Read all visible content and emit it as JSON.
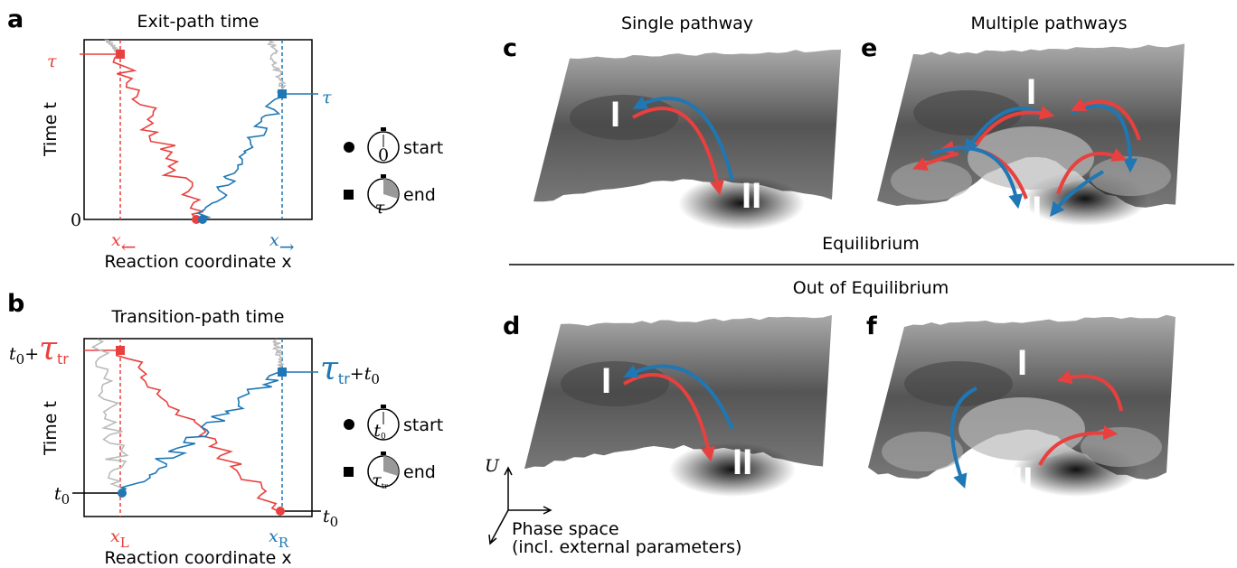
{
  "panel_a": {
    "label": "a",
    "title": "Exit-path time",
    "y_axis": "Time t",
    "x_axis": "Reaction coordinate x",
    "origin": "0",
    "left_marker": [
      "x",
      "←"
    ],
    "right_marker": [
      "x",
      "→"
    ],
    "tau_left": "τ",
    "tau_right": "τ",
    "legend": [
      {
        "clock": "0",
        "text": "start"
      },
      {
        "clock": "τ",
        "text": "end"
      }
    ]
  },
  "panel_b": {
    "label": "b",
    "title": "Transition-path time",
    "y_axis": "Time t",
    "x_axis": "Reaction coordinate x",
    "top_left": [
      "t",
      "0",
      "+",
      "τ",
      "tr"
    ],
    "top_right": [
      "τ",
      "tr",
      "+",
      "t",
      "0"
    ],
    "start_left": [
      "t",
      "0"
    ],
    "start_right": [
      "t",
      "0"
    ],
    "left_marker": [
      "x",
      "L"
    ],
    "right_marker": [
      "x",
      "R"
    ],
    "legend": [
      {
        "clock": [
          "t",
          "0"
        ],
        "text": "start"
      },
      {
        "clock": [
          "τ",
          "tr"
        ],
        "text": "end"
      }
    ]
  },
  "columns": [
    "Single pathway",
    "Multiple pathways"
  ],
  "rows": [
    "Equilibrium",
    "Out of Equilibrium"
  ],
  "panels": {
    "c": {
      "label": "c",
      "states": [
        "I",
        "II"
      ]
    },
    "d": {
      "label": "d",
      "states": [
        "I",
        "II"
      ]
    },
    "e": {
      "label": "e",
      "states": [
        "I",
        "II"
      ]
    },
    "f": {
      "label": "f",
      "states": [
        "I",
        "II"
      ]
    }
  },
  "axes": {
    "energy": "U",
    "phase": "Phase space",
    "phase_note": "(incl. external parameters)"
  }
}
